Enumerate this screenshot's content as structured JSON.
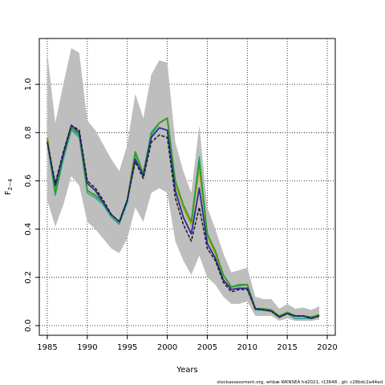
{
  "chart_data": {
    "type": "line",
    "title": "",
    "xlabel": "Years",
    "ylabel": "F",
    "ylabel_sub": "2−4",
    "xlim": [
      1984,
      2021
    ],
    "ylim": [
      -0.04,
      1.19
    ],
    "xticks": [
      1985,
      1990,
      1995,
      2000,
      2005,
      2010,
      2015,
      2020
    ],
    "yticks": [
      0.0,
      0.2,
      0.4,
      0.6,
      0.8,
      1.0
    ],
    "ytick_labels": [
      "0.0",
      "0.2",
      "0.4",
      "0.6",
      "0.8",
      "1.0"
    ],
    "grid": true,
    "band": {
      "name": "confidence interval",
      "color": "#bebebe",
      "x": [
        1985,
        1986,
        1987,
        1988,
        1989,
        1990,
        1991,
        1992,
        1993,
        1994,
        1995,
        1996,
        1997,
        1998,
        1999,
        2000,
        2001,
        2002,
        2003,
        2004,
        2005,
        2006,
        2007,
        2008,
        2009,
        2010,
        2011,
        2012,
        2013,
        2014,
        2015,
        2016,
        2017,
        2018,
        2019
      ],
      "upper": [
        1.13,
        0.84,
        1.0,
        1.15,
        1.13,
        0.85,
        0.81,
        0.75,
        0.69,
        0.64,
        0.75,
        0.96,
        0.86,
        1.04,
        1.1,
        1.09,
        0.76,
        0.64,
        0.55,
        0.83,
        0.49,
        0.4,
        0.3,
        0.22,
        0.23,
        0.24,
        0.12,
        0.11,
        0.11,
        0.07,
        0.09,
        0.07,
        0.075,
        0.065,
        0.08
      ],
      "lower": [
        0.52,
        0.41,
        0.5,
        0.62,
        0.58,
        0.43,
        0.4,
        0.36,
        0.32,
        0.3,
        0.36,
        0.49,
        0.43,
        0.55,
        0.57,
        0.55,
        0.35,
        0.27,
        0.21,
        0.29,
        0.2,
        0.17,
        0.12,
        0.09,
        0.09,
        0.1,
        0.04,
        0.04,
        0.04,
        0.02,
        0.03,
        0.02,
        0.02,
        0.02,
        0.025
      ]
    },
    "x": [
      1985,
      1986,
      1987,
      1988,
      1989,
      1990,
      1991,
      1992,
      1993,
      1994,
      1995,
      1996,
      1997,
      1998,
      1999,
      2000,
      2001,
      2002,
      2003,
      2004,
      2005,
      2006,
      2007,
      2008,
      2009,
      2010,
      2011,
      2012,
      2013,
      2014,
      2015,
      2016,
      2017,
      2018,
      2019
    ],
    "series": [
      {
        "color": "#c8a000",
        "width": 2.2,
        "dash": "",
        "values": [
          0.78,
          0.56,
          0.7,
          0.82,
          0.79,
          0.56,
          0.54,
          0.51,
          0.46,
          0.43,
          0.52,
          0.72,
          0.63,
          0.79,
          0.84,
          0.86,
          0.59,
          0.49,
          0.42,
          0.66,
          0.37,
          0.3,
          0.21,
          0.16,
          0.165,
          0.17,
          0.07,
          0.07,
          0.065,
          0.04,
          0.055,
          0.04,
          0.04,
          0.035,
          0.045
        ]
      },
      {
        "color": "#20a8a0",
        "width": 1.6,
        "dash": "",
        "values": [
          0.76,
          0.54,
          0.69,
          0.81,
          0.78,
          0.55,
          0.53,
          0.5,
          0.45,
          0.42,
          0.51,
          0.71,
          0.63,
          0.79,
          0.84,
          0.86,
          0.6,
          0.5,
          0.43,
          0.7,
          0.38,
          0.31,
          0.21,
          0.16,
          0.165,
          0.17,
          0.065,
          0.065,
          0.06,
          0.035,
          0.05,
          0.03,
          0.03,
          0.03,
          0.04
        ]
      },
      {
        "color": "#2ca02c",
        "width": 1.8,
        "dash": "",
        "values": [
          0.77,
          0.55,
          0.7,
          0.82,
          0.79,
          0.56,
          0.54,
          0.51,
          0.46,
          0.43,
          0.52,
          0.72,
          0.63,
          0.8,
          0.84,
          0.86,
          0.6,
          0.5,
          0.43,
          0.68,
          0.38,
          0.31,
          0.21,
          0.16,
          0.17,
          0.17,
          0.07,
          0.07,
          0.065,
          0.04,
          0.055,
          0.04,
          0.04,
          0.035,
          0.045
        ]
      },
      {
        "color": "#2a2aa0",
        "width": 1.8,
        "dash": "",
        "values": [
          0.76,
          0.58,
          0.71,
          0.83,
          0.8,
          0.59,
          0.56,
          0.51,
          0.46,
          0.43,
          0.52,
          0.69,
          0.62,
          0.78,
          0.82,
          0.81,
          0.56,
          0.45,
          0.38,
          0.57,
          0.34,
          0.28,
          0.19,
          0.15,
          0.155,
          0.155,
          0.07,
          0.065,
          0.06,
          0.035,
          0.05,
          0.04,
          0.04,
          0.03,
          0.04
        ]
      },
      {
        "color": "#222222",
        "width": 1.6,
        "dash": "4,2",
        "values": [
          0.76,
          0.59,
          0.72,
          0.83,
          0.81,
          0.6,
          0.57,
          0.52,
          0.46,
          0.43,
          0.52,
          0.68,
          0.61,
          0.76,
          0.79,
          0.78,
          0.53,
          0.42,
          0.35,
          0.49,
          0.32,
          0.27,
          0.18,
          0.14,
          0.15,
          0.15,
          0.07,
          0.065,
          0.06,
          0.035,
          0.05,
          0.04,
          0.04,
          0.03,
          0.04
        ]
      }
    ]
  },
  "footer_text": "stockassessment.org, whbæ WKNSEA hd2021, r13648 , git: c28bdc2a44ad"
}
